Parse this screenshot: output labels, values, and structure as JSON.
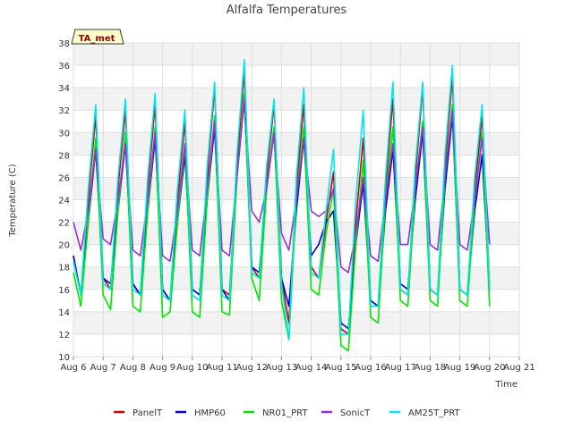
{
  "chart_data": {
    "type": "line",
    "title": "Alfalfa Temperatures",
    "xlabel": "Time",
    "ylabel": "Temperature (C)",
    "annotation": "TA_met",
    "xlim": [
      6,
      21
    ],
    "ylim": [
      10,
      38
    ],
    "x_tick_labels": [
      "Aug 6",
      "Aug 7",
      "Aug 8",
      "Aug 9",
      "Aug 10",
      "Aug 11",
      "Aug 12",
      "Aug 13",
      "Aug 14",
      "Aug 15",
      "Aug 16",
      "Aug 17",
      "Aug 18",
      "Aug 19",
      "Aug 20",
      "Aug 21"
    ],
    "y_ticks": [
      10,
      12,
      14,
      16,
      18,
      20,
      22,
      24,
      26,
      28,
      30,
      32,
      34,
      36,
      38
    ],
    "grid": true,
    "legend_position": "bottom",
    "series": [
      {
        "name": "PanelT",
        "color": "#cc0000",
        "x": [
          6.0,
          6.25,
          6.5,
          6.75,
          7.0,
          7.25,
          7.5,
          7.75,
          8.0,
          8.25,
          8.5,
          8.75,
          9.0,
          9.25,
          9.5,
          9.75,
          10.0,
          10.25,
          10.5,
          10.75,
          11.0,
          11.25,
          11.5,
          11.75,
          12.0,
          12.25,
          12.5,
          12.75,
          13.0,
          13.25,
          13.5,
          13.75,
          14.0,
          14.25,
          14.5,
          14.75,
          15.0,
          15.25,
          15.5,
          15.75,
          16.0,
          16.25,
          16.5,
          16.75,
          17.0,
          17.25,
          17.5,
          17.75,
          18.0,
          18.25,
          18.5,
          18.75,
          19.0,
          19.25,
          19.5,
          19.75,
          20.0
        ],
        "y": [
          19,
          15.5,
          24,
          31.5,
          17,
          16,
          25,
          32,
          16.5,
          15.5,
          25,
          32.5,
          16,
          15,
          24,
          31,
          16,
          15.5,
          26,
          34,
          16,
          15.5,
          27,
          35.5,
          18,
          17,
          26,
          32.5,
          17,
          13,
          25,
          32.5,
          18,
          17,
          22,
          26.5,
          12.5,
          12,
          22,
          29.5,
          15,
          14.5,
          25,
          33,
          16,
          15.5,
          26,
          34,
          16,
          15.5,
          27,
          35,
          16,
          15.5,
          25,
          31.5,
          16
        ]
      },
      {
        "name": "HMP60",
        "color": "#0000cc",
        "x": [
          6.0,
          6.25,
          6.5,
          6.75,
          7.0,
          7.25,
          7.5,
          7.75,
          8.0,
          8.25,
          8.5,
          8.75,
          9.0,
          9.25,
          9.5,
          9.75,
          10.0,
          10.25,
          10.5,
          10.75,
          11.0,
          11.25,
          11.5,
          11.75,
          12.0,
          12.25,
          12.5,
          12.75,
          13.0,
          13.25,
          13.5,
          13.75,
          14.0,
          14.25,
          14.5,
          14.75,
          15.0,
          15.25,
          15.5,
          15.75,
          16.0,
          16.25,
          16.5,
          16.75,
          17.0,
          17.25,
          17.5,
          17.75,
          18.0,
          18.25,
          18.5,
          18.75,
          19.0,
          19.25,
          19.5,
          19.75,
          20.0
        ],
        "y": [
          19,
          15.5,
          22,
          28.5,
          17,
          16.5,
          23,
          29,
          16.5,
          15.5,
          23,
          29.5,
          16,
          15,
          22,
          28,
          16,
          15.5,
          24,
          30.5,
          16,
          15,
          26,
          33,
          18,
          17.5,
          25,
          30,
          17,
          14.5,
          23,
          29.5,
          19,
          20,
          22,
          23,
          13,
          12.5,
          20,
          25.5,
          15,
          14.5,
          23,
          28.5,
          16.5,
          16,
          24,
          30,
          16,
          15.5,
          25,
          31.5,
          16,
          15.5,
          23,
          28,
          16
        ]
      },
      {
        "name": "NR01_PRT",
        "color": "#00e600",
        "x": [
          6.0,
          6.25,
          6.5,
          6.75,
          7.0,
          7.25,
          7.5,
          7.75,
          8.0,
          8.25,
          8.5,
          8.75,
          9.0,
          9.25,
          9.5,
          9.75,
          10.0,
          10.25,
          10.5,
          10.75,
          11.0,
          11.25,
          11.5,
          11.75,
          12.0,
          12.25,
          12.5,
          12.75,
          13.0,
          13.25,
          13.5,
          13.75,
          14.0,
          14.25,
          14.5,
          14.75,
          15.0,
          15.25,
          15.5,
          15.75,
          16.0,
          16.25,
          16.5,
          16.75,
          17.0,
          17.25,
          17.5,
          17.75,
          18.0,
          18.25,
          18.5,
          18.75,
          19.0,
          19.25,
          19.5,
          19.75,
          20.0
        ],
        "y": [
          17.5,
          14.5,
          22,
          29.5,
          15.5,
          14.2,
          23,
          30,
          14.5,
          14,
          23,
          30.5,
          13.5,
          14,
          22,
          29,
          14,
          13.5,
          24,
          31.5,
          14,
          13.7,
          26,
          33.5,
          17,
          15,
          25,
          30.5,
          15,
          11.5,
          24,
          30.5,
          16,
          15.5,
          21,
          25,
          11,
          10.5,
          20,
          27.5,
          13.5,
          13,
          24,
          30.5,
          15,
          14.5,
          25,
          31,
          15,
          14.5,
          26,
          32.5,
          15,
          14.5,
          24,
          30,
          14.5
        ]
      },
      {
        "name": "SonicT",
        "color": "#9933cc",
        "x": [
          6.0,
          6.25,
          6.5,
          6.75,
          7.0,
          7.25,
          7.5,
          7.75,
          8.0,
          8.25,
          8.5,
          8.75,
          9.0,
          9.25,
          9.5,
          9.75,
          10.0,
          10.25,
          10.5,
          10.75,
          11.0,
          11.25,
          11.5,
          11.75,
          12.0,
          12.25,
          12.5,
          12.75,
          13.0,
          13.25,
          13.5,
          13.75,
          14.0,
          14.25,
          14.5,
          14.75,
          15.0,
          15.25,
          15.5,
          15.75,
          16.0,
          16.25,
          16.5,
          16.75,
          17.0,
          17.25,
          17.5,
          17.75,
          18.0,
          18.25,
          18.5,
          18.75,
          19.0,
          19.25,
          19.5,
          19.75,
          20.0
        ],
        "y": [
          22,
          19.5,
          23,
          28.5,
          20.5,
          20,
          24,
          29,
          19.5,
          19,
          24,
          30,
          19,
          18.5,
          23,
          29,
          19.5,
          19,
          25,
          31,
          19.5,
          19,
          26,
          33,
          23,
          22,
          25,
          30,
          21,
          19.5,
          24,
          29.5,
          23,
          22.5,
          23,
          25,
          18,
          17.5,
          21,
          26,
          19,
          18.5,
          24,
          29,
          20,
          20,
          25,
          30.5,
          20,
          19.5,
          26,
          32,
          20,
          19.5,
          24,
          29.5,
          20
        ]
      },
      {
        "name": "AM25T_PRT",
        "color": "#00e5ee",
        "x": [
          6.0,
          6.25,
          6.5,
          6.75,
          7.0,
          7.25,
          7.5,
          7.75,
          8.0,
          8.25,
          8.5,
          8.75,
          9.0,
          9.25,
          9.5,
          9.75,
          10.0,
          10.25,
          10.5,
          10.75,
          11.0,
          11.25,
          11.5,
          11.75,
          12.0,
          12.25,
          12.5,
          12.75,
          13.0,
          13.25,
          13.5,
          13.75,
          14.0,
          14.25,
          14.5,
          14.75,
          15.0,
          15.25,
          15.5,
          15.75,
          16.0,
          16.25,
          16.5,
          16.75,
          17.0,
          17.25,
          17.5,
          17.75,
          18.0,
          18.25,
          18.5,
          18.75,
          19.0,
          19.25,
          19.5,
          19.75,
          20.0
        ],
        "y": [
          18.5,
          15.5,
          25,
          32.5,
          16.5,
          16,
          26,
          33,
          16,
          15.5,
          26,
          33.5,
          15.5,
          15,
          25,
          32,
          15.5,
          15,
          27,
          34.5,
          15.5,
          15,
          28,
          36.5,
          17.5,
          17,
          27,
          33,
          16.5,
          11.5,
          26,
          34,
          17.5,
          17,
          23,
          28.5,
          12,
          12,
          24,
          32,
          14.5,
          14.5,
          26,
          34.5,
          16,
          15.5,
          27,
          34.5,
          16,
          15.5,
          28,
          36,
          16,
          15.5,
          26,
          32.5,
          16
        ]
      }
    ]
  }
}
